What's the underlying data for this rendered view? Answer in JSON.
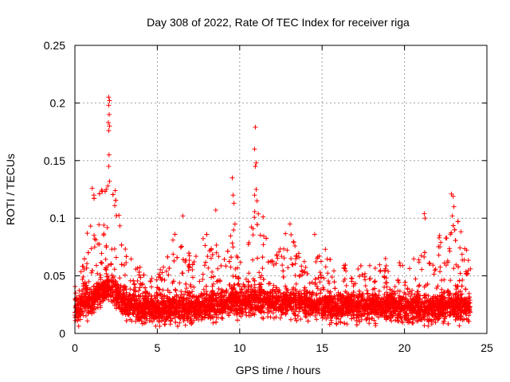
{
  "chart_data": {
    "type": "scatter",
    "title": "Day 308 of 2022, Rate Of TEC Index for receiver riga",
    "xlabel": "GPS time / hours",
    "ylabel": "ROTI / TECUs",
    "xlim": [
      0,
      25
    ],
    "ylim": [
      0,
      0.25
    ],
    "xticks": [
      {
        "value": 0,
        "label": "0"
      },
      {
        "value": 5,
        "label": "5"
      },
      {
        "value": 10,
        "label": "10"
      },
      {
        "value": 15,
        "label": "15"
      },
      {
        "value": 20,
        "label": "20"
      },
      {
        "value": 25,
        "label": "25"
      }
    ],
    "yticks": [
      {
        "value": 0,
        "label": "0"
      },
      {
        "value": 0.05,
        "label": "0.05"
      },
      {
        "value": 0.1,
        "label": "0.1"
      },
      {
        "value": 0.15,
        "label": "0.15"
      },
      {
        "value": 0.2,
        "label": "0.2"
      },
      {
        "value": 0.25,
        "label": "0.25"
      }
    ],
    "grid": true,
    "marker": "plus",
    "marker_color": "#ff0000",
    "data_span": [
      0,
      24
    ],
    "envelope": [
      {
        "x": 0.0,
        "base": 0.022,
        "upper": 0.045
      },
      {
        "x": 0.5,
        "base": 0.024,
        "upper": 0.06
      },
      {
        "x": 1.0,
        "base": 0.028,
        "upper": 0.115
      },
      {
        "x": 1.5,
        "base": 0.035,
        "upper": 0.125
      },
      {
        "x": 2.0,
        "base": 0.04,
        "upper": 0.125
      },
      {
        "x": 2.5,
        "base": 0.035,
        "upper": 0.12
      },
      {
        "x": 3.0,
        "base": 0.025,
        "upper": 0.075
      },
      {
        "x": 3.5,
        "base": 0.023,
        "upper": 0.08
      },
      {
        "x": 4.0,
        "base": 0.022,
        "upper": 0.06
      },
      {
        "x": 5.0,
        "base": 0.02,
        "upper": 0.05
      },
      {
        "x": 6.0,
        "base": 0.022,
        "upper": 0.085
      },
      {
        "x": 6.5,
        "base": 0.022,
        "upper": 0.1
      },
      {
        "x": 7.0,
        "base": 0.022,
        "upper": 0.065
      },
      {
        "x": 8.0,
        "base": 0.024,
        "upper": 0.09
      },
      {
        "x": 9.0,
        "base": 0.025,
        "upper": 0.07
      },
      {
        "x": 9.5,
        "base": 0.03,
        "upper": 0.11
      },
      {
        "x": 10.0,
        "base": 0.027,
        "upper": 0.075
      },
      {
        "x": 11.0,
        "base": 0.03,
        "upper": 0.125
      },
      {
        "x": 12.0,
        "base": 0.027,
        "upper": 0.075
      },
      {
        "x": 13.0,
        "base": 0.028,
        "upper": 0.09
      },
      {
        "x": 14.0,
        "base": 0.025,
        "upper": 0.065
      },
      {
        "x": 15.0,
        "base": 0.023,
        "upper": 0.07
      },
      {
        "x": 16.0,
        "base": 0.023,
        "upper": 0.06
      },
      {
        "x": 17.0,
        "base": 0.023,
        "upper": 0.06
      },
      {
        "x": 18.0,
        "base": 0.023,
        "upper": 0.06
      },
      {
        "x": 19.0,
        "base": 0.023,
        "upper": 0.07
      },
      {
        "x": 20.0,
        "base": 0.022,
        "upper": 0.06
      },
      {
        "x": 21.0,
        "base": 0.022,
        "upper": 0.07
      },
      {
        "x": 22.0,
        "base": 0.022,
        "upper": 0.08
      },
      {
        "x": 23.0,
        "base": 0.024,
        "upper": 0.12
      },
      {
        "x": 24.0,
        "base": 0.022,
        "upper": 0.06
      }
    ],
    "outliers": [
      {
        "x": 2.05,
        "y": 0.205
      },
      {
        "x": 2.1,
        "y": 0.202
      },
      {
        "x": 2.05,
        "y": 0.198
      },
      {
        "x": 2.08,
        "y": 0.19
      },
      {
        "x": 2.03,
        "y": 0.183
      },
      {
        "x": 2.1,
        "y": 0.18
      },
      {
        "x": 2.05,
        "y": 0.176
      },
      {
        "x": 2.07,
        "y": 0.155
      },
      {
        "x": 2.05,
        "y": 0.145
      },
      {
        "x": 2.1,
        "y": 0.132
      },
      {
        "x": 2.0,
        "y": 0.128
      },
      {
        "x": 1.9,
        "y": 0.125
      },
      {
        "x": 1.05,
        "y": 0.126
      },
      {
        "x": 1.15,
        "y": 0.12
      },
      {
        "x": 2.45,
        "y": 0.124
      },
      {
        "x": 10.95,
        "y": 0.179
      },
      {
        "x": 10.9,
        "y": 0.16
      },
      {
        "x": 11.0,
        "y": 0.148
      },
      {
        "x": 10.95,
        "y": 0.145
      },
      {
        "x": 11.0,
        "y": 0.125
      },
      {
        "x": 10.9,
        "y": 0.12
      },
      {
        "x": 11.05,
        "y": 0.115
      },
      {
        "x": 9.55,
        "y": 0.135
      },
      {
        "x": 9.6,
        "y": 0.12
      },
      {
        "x": 9.65,
        "y": 0.113
      },
      {
        "x": 8.55,
        "y": 0.107
      },
      {
        "x": 6.55,
        "y": 0.102
      },
      {
        "x": 13.05,
        "y": 0.095
      },
      {
        "x": 14.55,
        "y": 0.086
      },
      {
        "x": 15.2,
        "y": 0.073
      },
      {
        "x": 21.2,
        "y": 0.104
      },
      {
        "x": 21.25,
        "y": 0.1
      },
      {
        "x": 22.85,
        "y": 0.121
      },
      {
        "x": 22.95,
        "y": 0.119
      },
      {
        "x": 23.0,
        "y": 0.11
      },
      {
        "x": 22.9,
        "y": 0.102
      },
      {
        "x": 23.05,
        "y": 0.09
      },
      {
        "x": 22.1,
        "y": 0.083
      },
      {
        "x": 22.2,
        "y": 0.079
      },
      {
        "x": 24.0,
        "y": 0.056
      }
    ]
  }
}
